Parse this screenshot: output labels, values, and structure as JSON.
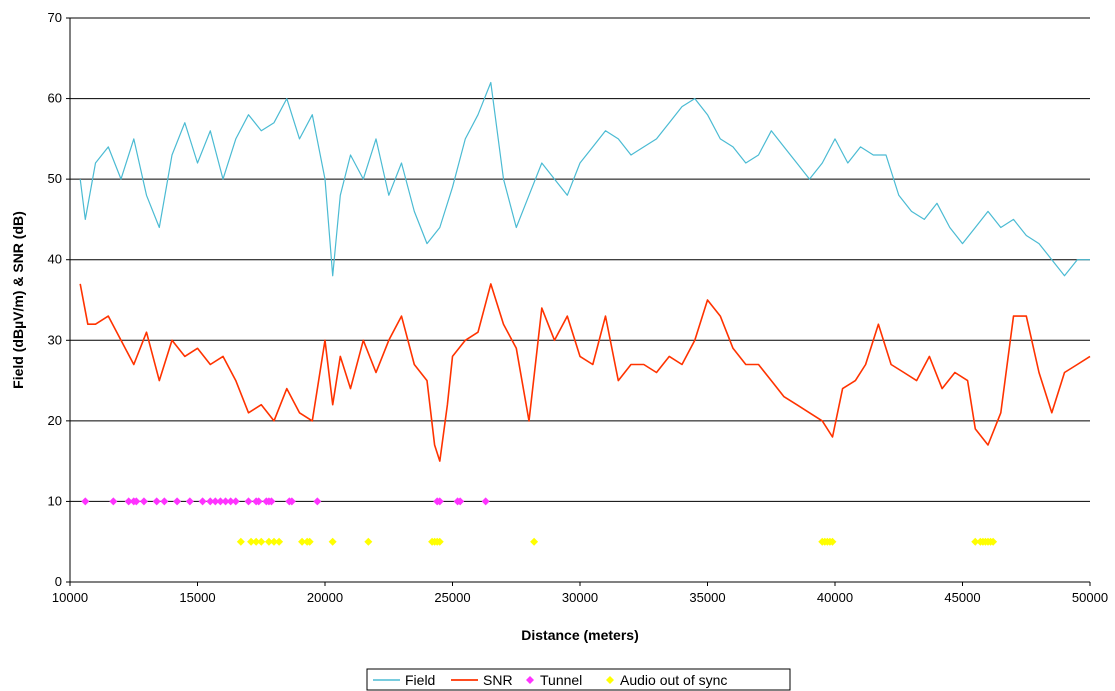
{
  "chart_data": {
    "type": "line",
    "title": "",
    "xlabel": "Distance (meters)",
    "ylabel": "Field (dBµV/m) & SNR (dB)",
    "xlim": [
      10000,
      50000
    ],
    "ylim": [
      0,
      70
    ],
    "x_ticks": [
      10000,
      15000,
      20000,
      25000,
      30000,
      35000,
      40000,
      45000,
      50000
    ],
    "x_tick_labels": [
      "10000",
      "15000",
      "20000",
      "25000",
      "30000",
      "35000",
      "40000",
      "45000",
      "50000"
    ],
    "y_ticks": [
      0,
      10,
      20,
      30,
      40,
      50,
      60,
      70
    ],
    "y_tick_labels": [
      "0",
      "10",
      "20",
      "30",
      "40",
      "50",
      "60",
      "70"
    ],
    "grid": "horizontal",
    "legend_position": "bottom",
    "series": [
      {
        "name": "Field",
        "kind": "line",
        "color": "#4bbbd3",
        "x": [
          10400,
          10600,
          11000,
          11500,
          12000,
          12500,
          13000,
          13500,
          14000,
          14500,
          15000,
          15500,
          16000,
          16500,
          17000,
          17500,
          18000,
          18500,
          19000,
          19500,
          20000,
          20300,
          20600,
          21000,
          21500,
          22000,
          22500,
          23000,
          23500,
          24000,
          24500,
          25000,
          25500,
          26000,
          26500,
          27000,
          27500,
          28000,
          28500,
          29000,
          29500,
          30000,
          30500,
          31000,
          31500,
          32000,
          32500,
          33000,
          33500,
          34000,
          34500,
          35000,
          35500,
          36000,
          36500,
          37000,
          37500,
          38000,
          38500,
          39000,
          39500,
          40000,
          40500,
          41000,
          41500,
          42000,
          42500,
          43000,
          43500,
          44000,
          44500,
          45000,
          45500,
          46000,
          46500,
          47000,
          47500,
          48000,
          48500,
          49000,
          49500,
          50000
        ],
        "y": [
          50,
          45,
          52,
          54,
          50,
          55,
          48,
          44,
          53,
          57,
          52,
          56,
          50,
          55,
          58,
          56,
          57,
          60,
          55,
          58,
          50,
          38,
          48,
          53,
          50,
          55,
          48,
          52,
          46,
          42,
          44,
          49,
          55,
          58,
          62,
          50,
          44,
          48,
          52,
          50,
          48,
          52,
          54,
          56,
          55,
          53,
          54,
          55,
          57,
          59,
          60,
          58,
          55,
          54,
          52,
          53,
          56,
          54,
          52,
          50,
          52,
          55,
          52,
          54,
          53,
          53,
          48,
          46,
          45,
          47,
          44,
          42,
          44,
          46,
          44,
          45,
          43,
          42,
          40,
          38,
          40,
          40
        ]
      },
      {
        "name": "SNR",
        "kind": "line",
        "color": "#ff3300",
        "x": [
          10400,
          10700,
          11000,
          11500,
          12000,
          12500,
          13000,
          13500,
          14000,
          14500,
          15000,
          15500,
          16000,
          16500,
          17000,
          17500,
          18000,
          18500,
          19000,
          19500,
          20000,
          20300,
          20600,
          21000,
          21500,
          22000,
          22500,
          23000,
          23500,
          24000,
          24300,
          24500,
          24800,
          25000,
          25500,
          26000,
          26500,
          27000,
          27500,
          28000,
          28500,
          29000,
          29500,
          30000,
          30500,
          31000,
          31500,
          32000,
          32500,
          33000,
          33500,
          34000,
          34500,
          35000,
          35500,
          36000,
          36500,
          37000,
          37500,
          38000,
          38500,
          39000,
          39500,
          39900,
          40300,
          40800,
          41200,
          41700,
          42200,
          42700,
          43200,
          43700,
          44200,
          44700,
          45200,
          45500,
          46000,
          46500,
          47000,
          47500,
          48000,
          48500,
          49000,
          49500,
          50000
        ],
        "y": [
          37,
          32,
          32,
          33,
          30,
          27,
          31,
          25,
          30,
          28,
          29,
          27,
          28,
          25,
          21,
          22,
          20,
          24,
          21,
          20,
          30,
          22,
          28,
          24,
          30,
          26,
          30,
          33,
          27,
          25,
          17,
          15,
          22,
          28,
          30,
          31,
          37,
          32,
          29,
          20,
          34,
          30,
          33,
          28,
          27,
          33,
          25,
          27,
          27,
          26,
          28,
          27,
          30,
          35,
          33,
          29,
          27,
          27,
          25,
          23,
          22,
          21,
          20,
          18,
          24,
          25,
          27,
          32,
          27,
          26,
          25,
          28,
          24,
          26,
          25,
          19,
          17,
          21,
          33,
          33,
          26,
          21,
          26,
          27,
          28
        ]
      },
      {
        "name": "Tunnel",
        "kind": "scatter",
        "color": "#ff33ff",
        "x": [
          10600,
          11700,
          12300,
          12500,
          12600,
          12900,
          13400,
          13700,
          14200,
          14700,
          15200,
          15500,
          15700,
          15900,
          16100,
          16300,
          16500,
          17000,
          17300,
          17400,
          17700,
          17800,
          17900,
          18600,
          18700,
          19700,
          24400,
          24500,
          25200,
          25300,
          26300
        ],
        "y": [
          10,
          10,
          10,
          10,
          10,
          10,
          10,
          10,
          10,
          10,
          10,
          10,
          10,
          10,
          10,
          10,
          10,
          10,
          10,
          10,
          10,
          10,
          10,
          10,
          10,
          10,
          10,
          10,
          10,
          10,
          10
        ]
      },
      {
        "name": "Audio out of sync",
        "kind": "scatter",
        "color": "#ffff00",
        "x": [
          16700,
          17100,
          17300,
          17500,
          17800,
          18000,
          18200,
          19100,
          19300,
          19400,
          20300,
          21700,
          24200,
          24300,
          24400,
          24500,
          28200,
          39500,
          39600,
          39700,
          39800,
          39900,
          45500,
          45700,
          45800,
          45900,
          46000,
          46100,
          46200
        ],
        "y": [
          5,
          5,
          5,
          5,
          5,
          5,
          5,
          5,
          5,
          5,
          5,
          5,
          5,
          5,
          5,
          5,
          5,
          5,
          5,
          5,
          5,
          5,
          5,
          5,
          5,
          5,
          5,
          5,
          5
        ]
      }
    ]
  }
}
